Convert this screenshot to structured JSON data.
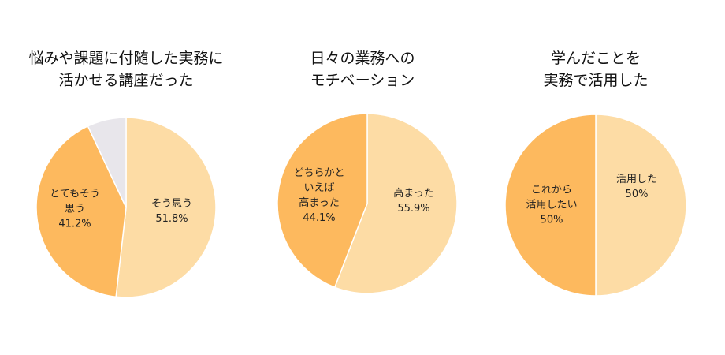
{
  "chart_data": [
    {
      "type": "pie",
      "title": "悩みや課題に付随した実務に\n活かせる講座だった",
      "slices": [
        {
          "label": "そう思う",
          "value": 51.8,
          "value_label": "51.8%",
          "color": "#FDDCA5"
        },
        {
          "label": "とてもそう\n思う",
          "value": 41.2,
          "value_label": "41.2%",
          "color": "#FDB95E"
        },
        {
          "label": "",
          "value": 7.0,
          "value_label": "",
          "color": "#E8E6EB"
        }
      ]
    },
    {
      "type": "pie",
      "title": "日々の業務への\nモチベーション",
      "slices": [
        {
          "label": "高まった",
          "value": 55.9,
          "value_label": "55.9%",
          "color": "#FDDCA5"
        },
        {
          "label": "どちらかと\nいえば\n高まった",
          "value": 44.1,
          "value_label": "44.1%",
          "color": "#FDB95E"
        }
      ]
    },
    {
      "type": "pie",
      "title": "学んだことを\n実務で活用した",
      "slices": [
        {
          "label": "活用した",
          "value": 50,
          "value_label": "50%",
          "color": "#FDDCA5"
        },
        {
          "label": "これから\n活用したい",
          "value": 50,
          "value_label": "50%",
          "color": "#FDB95E"
        }
      ]
    }
  ]
}
